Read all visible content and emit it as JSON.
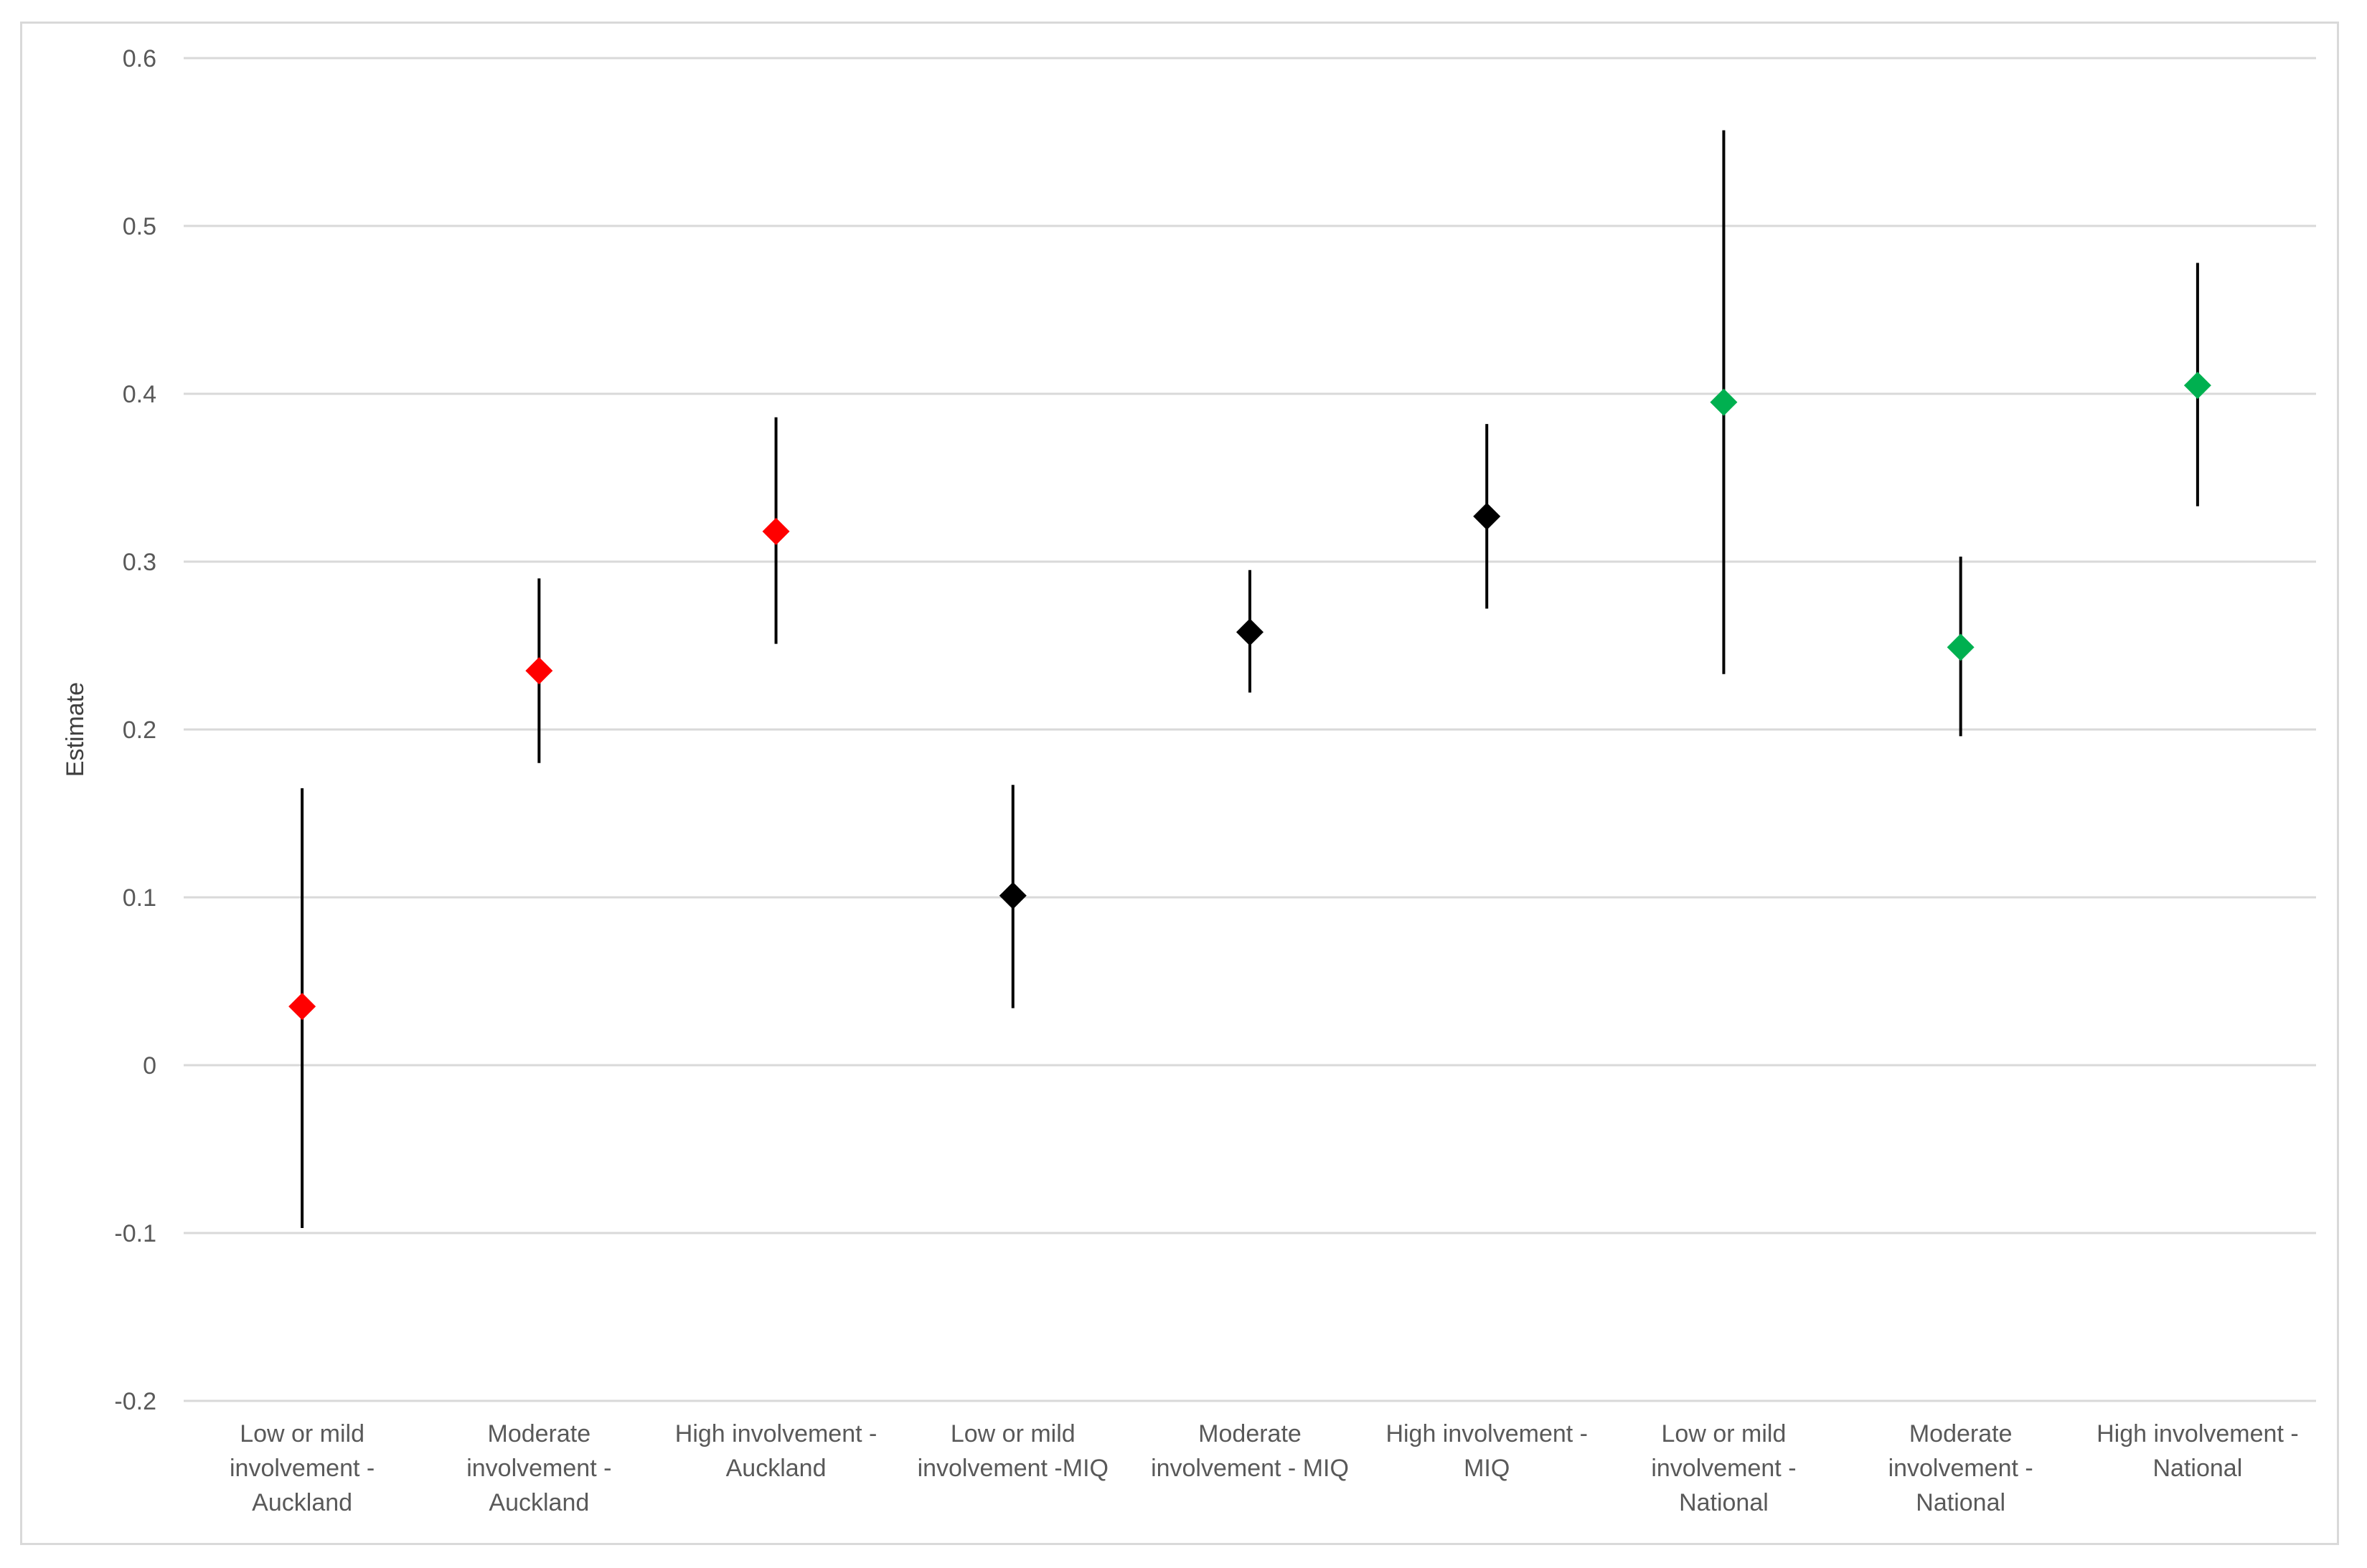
{
  "chart_data": {
    "type": "scatter",
    "title": "",
    "xlabel": "",
    "ylabel": "Estimate",
    "ylim": [
      -0.2,
      0.6
    ],
    "yticks": [
      {
        "value": 0.6,
        "label": "0.6"
      },
      {
        "value": 0.5,
        "label": "0.5"
      },
      {
        "value": 0.4,
        "label": "0.4"
      },
      {
        "value": 0.3,
        "label": "0.3"
      },
      {
        "value": 0.2,
        "label": "0.2"
      },
      {
        "value": 0.1,
        "label": "0.1"
      },
      {
        "value": 0,
        "label": "0"
      },
      {
        "value": -0.1,
        "label": "-0.1"
      },
      {
        "value": -0.2,
        "label": "-0.2"
      }
    ],
    "grid": true,
    "legend": "none",
    "categories": [
      {
        "lines": [
          "Low or mild",
          "involvement -",
          "Auckland"
        ],
        "estimate": 0.035,
        "lower": -0.097,
        "upper": 0.165,
        "color": "#ff0000"
      },
      {
        "lines": [
          "Moderate",
          "involvement -",
          "Auckland"
        ],
        "estimate": 0.235,
        "lower": 0.18,
        "upper": 0.29,
        "color": "#ff0000"
      },
      {
        "lines": [
          "High involvement -",
          "Auckland"
        ],
        "estimate": 0.318,
        "lower": 0.251,
        "upper": 0.386,
        "color": "#ff0000"
      },
      {
        "lines": [
          "Low or mild",
          "involvement -MIQ"
        ],
        "estimate": 0.101,
        "lower": 0.034,
        "upper": 0.167,
        "color": "#000000"
      },
      {
        "lines": [
          "Moderate",
          "involvement - MIQ"
        ],
        "estimate": 0.258,
        "lower": 0.222,
        "upper": 0.295,
        "color": "#000000"
      },
      {
        "lines": [
          "High involvement -",
          "MIQ"
        ],
        "estimate": 0.327,
        "lower": 0.272,
        "upper": 0.382,
        "color": "#000000"
      },
      {
        "lines": [
          "Low or mild",
          "involvement -",
          "National"
        ],
        "estimate": 0.395,
        "lower": 0.233,
        "upper": 0.557,
        "color": "#00b050"
      },
      {
        "lines": [
          "Moderate",
          "involvement -",
          "National"
        ],
        "estimate": 0.249,
        "lower": 0.196,
        "upper": 0.303,
        "color": "#00b050"
      },
      {
        "lines": [
          "High involvement -",
          "National"
        ],
        "estimate": 0.405,
        "lower": 0.333,
        "upper": 0.478,
        "color": "#00b050"
      }
    ]
  }
}
